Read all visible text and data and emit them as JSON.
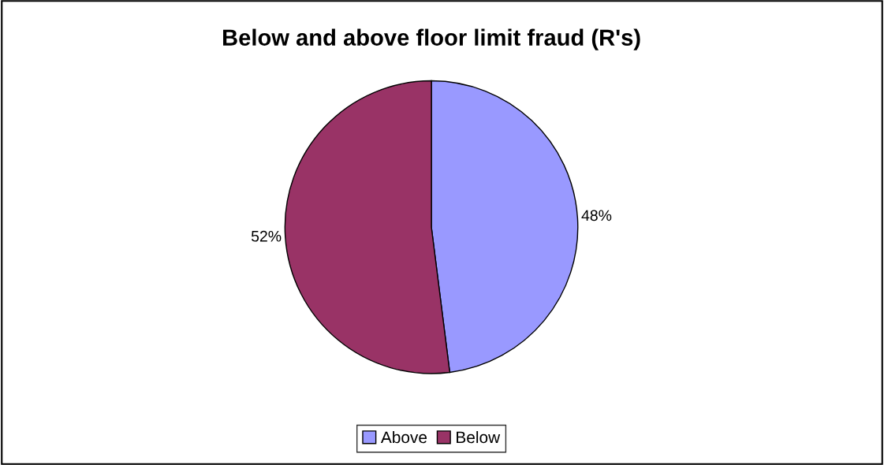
{
  "chart_data": {
    "type": "pie",
    "title": "Below and above floor limit fraud (R's)",
    "categories": [
      "Above",
      "Below"
    ],
    "values": [
      48,
      52
    ],
    "colors": [
      "#9999ff",
      "#993366"
    ],
    "value_labels": [
      "48%",
      "52%"
    ],
    "legend": "bottom"
  }
}
